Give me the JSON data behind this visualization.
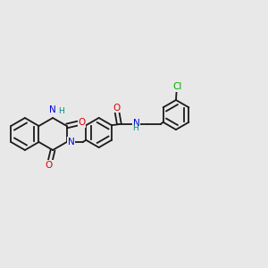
{
  "bg_color": "#e8e8e8",
  "bond_color": "#1a1a1a",
  "nitrogen_color": "#0000dd",
  "oxygen_color": "#dd0000",
  "chlorine_color": "#00aa00",
  "nh_color": "#008888",
  "lw": 1.3,
  "fs": 7.5,
  "fsh": 6.5,
  "dpi": 100,
  "figw": 3.0,
  "figh": 3.0,
  "xlim": [
    0.0,
    1.0
  ],
  "ylim": [
    0.25,
    0.75
  ]
}
